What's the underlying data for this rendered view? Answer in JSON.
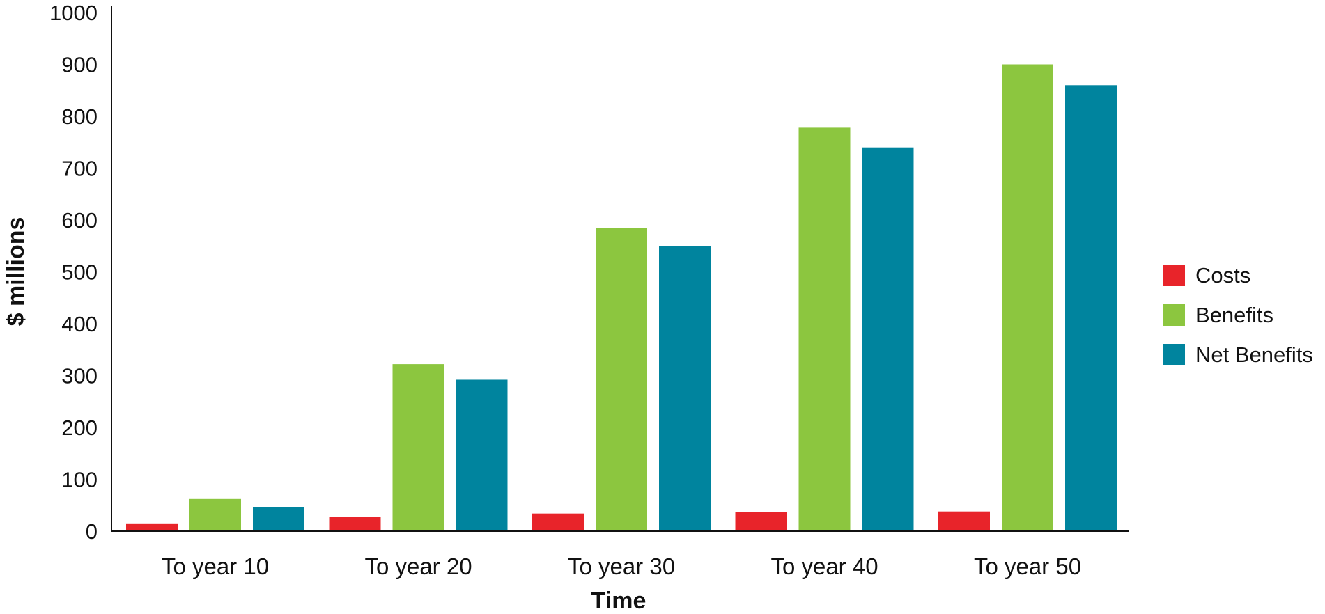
{
  "chart_data": {
    "type": "bar",
    "categories": [
      "To year 10",
      "To year 20",
      "To year 30",
      "To year 40",
      "To year 50"
    ],
    "series": [
      {
        "name": "Costs",
        "color": "#e8242a",
        "values": [
          15,
          28,
          34,
          37,
          38
        ]
      },
      {
        "name": "Benefits",
        "color": "#8cc63f",
        "values": [
          62,
          322,
          585,
          778,
          900
        ]
      },
      {
        "name": "Net Benefits",
        "color": "#00849e",
        "values": [
          46,
          292,
          550,
          740,
          860
        ]
      }
    ],
    "title": "",
    "xlabel": "Time",
    "ylabel": "$ millions",
    "ylim": [
      0,
      1000
    ],
    "yticks": [
      0,
      100,
      200,
      300,
      400,
      500,
      600,
      700,
      800,
      900,
      1000
    ],
    "grid": false,
    "legend_position": "right"
  }
}
